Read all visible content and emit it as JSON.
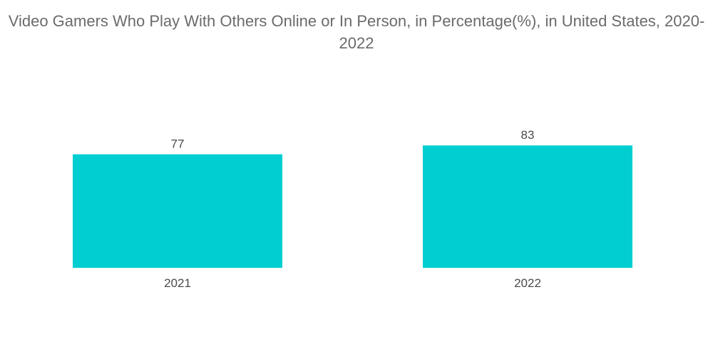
{
  "chart_data": {
    "type": "bar",
    "title": "Video Gamers Who Play With Others Online or In Person, in Percentage(%), in United States, 2020-2022",
    "categories": [
      "2021",
      "2022"
    ],
    "values": [
      77,
      83
    ],
    "data_labels": [
      "77",
      "83"
    ],
    "xlabel": "",
    "ylabel": "",
    "ylim": [
      0,
      100
    ],
    "grid": false,
    "legend": "none",
    "bar_color": "#00CED1"
  }
}
